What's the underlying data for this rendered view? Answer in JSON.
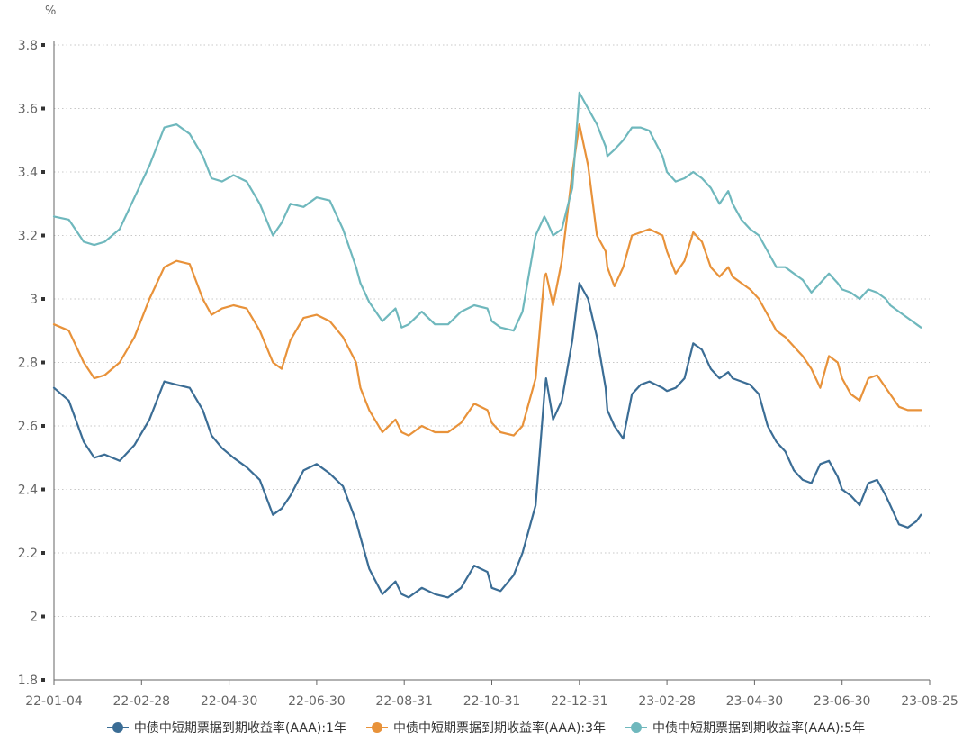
{
  "chart_data": {
    "type": "line",
    "title": "",
    "ylabel": "%",
    "xlabel": "",
    "ylim": [
      1.8,
      3.8
    ],
    "yticks": [
      "1.8",
      "2",
      "2.2",
      "2.4",
      "2.6",
      "2.8",
      "3",
      "3.2",
      "3.4",
      "3.6",
      "3.8"
    ],
    "xticks": [
      "22-01-04",
      "22-02-28",
      "22-04-30",
      "22-06-30",
      "22-08-31",
      "22-10-31",
      "22-12-31",
      "23-02-28",
      "23-04-30",
      "23-06-30",
      "23-08-25"
    ],
    "grid": true,
    "legend_position": "bottom",
    "series": [
      {
        "name": "中债中短期票据到期收益率(AAA):1年",
        "color": "#3b6d95",
        "x": [
          0,
          0.17,
          0.34,
          0.46,
          0.58,
          0.75,
          0.92,
          1.09,
          1.26,
          1.4,
          1.55,
          1.7,
          1.8,
          1.92,
          2.05,
          2.2,
          2.35,
          2.5,
          2.6,
          2.7,
          2.85,
          3,
          3.15,
          3.3,
          3.45,
          3.5,
          3.6,
          3.75,
          3.9,
          3.97,
          4.05,
          4.2,
          4.35,
          4.5,
          4.65,
          4.8,
          4.95,
          5.0,
          5.1,
          5.25,
          5.35,
          5.5,
          5.6,
          5.62,
          5.7,
          5.8,
          5.92,
          6.0,
          6.1,
          6.2,
          6.3,
          6.32,
          6.4,
          6.5,
          6.6,
          6.7,
          6.8,
          6.95,
          7.0,
          7.1,
          7.2,
          7.3,
          7.4,
          7.5,
          7.6,
          7.7,
          7.75,
          7.85,
          7.95,
          8.05,
          8.15,
          8.25,
          8.35,
          8.45,
          8.55,
          8.65,
          8.75,
          8.85,
          8.95,
          9.0,
          9.1,
          9.2,
          9.3,
          9.4,
          9.5,
          9.55,
          9.65,
          9.75,
          9.85,
          9.9
        ],
        "values": [
          2.72,
          2.68,
          2.55,
          2.5,
          2.51,
          2.49,
          2.54,
          2.62,
          2.74,
          2.73,
          2.72,
          2.65,
          2.57,
          2.53,
          2.5,
          2.47,
          2.43,
          2.32,
          2.34,
          2.38,
          2.46,
          2.48,
          2.45,
          2.41,
          2.3,
          2.25,
          2.15,
          2.07,
          2.11,
          2.07,
          2.06,
          2.09,
          2.07,
          2.06,
          2.09,
          2.16,
          2.14,
          2.09,
          2.08,
          2.13,
          2.2,
          2.35,
          2.7,
          2.75,
          2.62,
          2.68,
          2.87,
          3.05,
          3.0,
          2.88,
          2.72,
          2.65,
          2.6,
          2.56,
          2.7,
          2.73,
          2.74,
          2.72,
          2.71,
          2.72,
          2.75,
          2.86,
          2.84,
          2.78,
          2.75,
          2.77,
          2.75,
          2.74,
          2.73,
          2.7,
          2.6,
          2.55,
          2.52,
          2.46,
          2.43,
          2.42,
          2.48,
          2.49,
          2.44,
          2.4,
          2.38,
          2.35,
          2.42,
          2.43,
          2.38,
          2.35,
          2.29,
          2.28,
          2.3,
          2.32
        ]
      },
      {
        "name": "中债中短期票据到期收益率(AAA):3年",
        "color": "#e8923a",
        "x": [
          0,
          0.17,
          0.34,
          0.46,
          0.58,
          0.75,
          0.92,
          1.09,
          1.26,
          1.4,
          1.55,
          1.7,
          1.8,
          1.92,
          2.05,
          2.2,
          2.35,
          2.5,
          2.6,
          2.7,
          2.85,
          3,
          3.15,
          3.3,
          3.45,
          3.5,
          3.6,
          3.75,
          3.9,
          3.97,
          4.05,
          4.2,
          4.35,
          4.5,
          4.65,
          4.8,
          4.95,
          5.0,
          5.1,
          5.25,
          5.35,
          5.5,
          5.6,
          5.62,
          5.7,
          5.8,
          5.92,
          6.0,
          6.1,
          6.2,
          6.3,
          6.32,
          6.4,
          6.5,
          6.6,
          6.7,
          6.8,
          6.95,
          7.0,
          7.1,
          7.2,
          7.3,
          7.4,
          7.5,
          7.6,
          7.7,
          7.75,
          7.85,
          7.95,
          8.05,
          8.15,
          8.25,
          8.35,
          8.45,
          8.55,
          8.65,
          8.75,
          8.85,
          8.95,
          9.0,
          9.1,
          9.2,
          9.3,
          9.4,
          9.5,
          9.55,
          9.65,
          9.75,
          9.85,
          9.9
        ],
        "values": [
          2.92,
          2.9,
          2.8,
          2.75,
          2.76,
          2.8,
          2.88,
          3.0,
          3.1,
          3.12,
          3.11,
          3.0,
          2.95,
          2.97,
          2.98,
          2.97,
          2.9,
          2.8,
          2.78,
          2.87,
          2.94,
          2.95,
          2.93,
          2.88,
          2.8,
          2.72,
          2.65,
          2.58,
          2.62,
          2.58,
          2.57,
          2.6,
          2.58,
          2.58,
          2.61,
          2.67,
          2.65,
          2.61,
          2.58,
          2.57,
          2.6,
          2.75,
          3.07,
          3.08,
          2.98,
          3.12,
          3.4,
          3.55,
          3.42,
          3.2,
          3.15,
          3.1,
          3.04,
          3.1,
          3.2,
          3.21,
          3.22,
          3.2,
          3.15,
          3.08,
          3.12,
          3.21,
          3.18,
          3.1,
          3.07,
          3.1,
          3.07,
          3.05,
          3.03,
          3.0,
          2.95,
          2.9,
          2.88,
          2.85,
          2.82,
          2.78,
          2.72,
          2.82,
          2.8,
          2.75,
          2.7,
          2.68,
          2.75,
          2.76,
          2.72,
          2.7,
          2.66,
          2.65,
          2.65,
          2.65
        ]
      },
      {
        "name": "中债中短期票据到期收益率(AAA):5年",
        "color": "#6fb8bd",
        "x": [
          0,
          0.17,
          0.34,
          0.46,
          0.58,
          0.75,
          0.92,
          1.09,
          1.26,
          1.4,
          1.55,
          1.7,
          1.8,
          1.92,
          2.05,
          2.2,
          2.35,
          2.5,
          2.6,
          2.7,
          2.85,
          3,
          3.15,
          3.3,
          3.45,
          3.5,
          3.6,
          3.75,
          3.9,
          3.97,
          4.05,
          4.2,
          4.35,
          4.5,
          4.65,
          4.8,
          4.95,
          5.0,
          5.1,
          5.25,
          5.35,
          5.5,
          5.6,
          5.62,
          5.7,
          5.8,
          5.92,
          6.0,
          6.1,
          6.2,
          6.3,
          6.32,
          6.4,
          6.5,
          6.6,
          6.7,
          6.8,
          6.95,
          7.0,
          7.1,
          7.2,
          7.3,
          7.4,
          7.5,
          7.6,
          7.7,
          7.75,
          7.85,
          7.95,
          8.05,
          8.15,
          8.25,
          8.35,
          8.45,
          8.55,
          8.65,
          8.75,
          8.85,
          8.95,
          9.0,
          9.1,
          9.2,
          9.3,
          9.4,
          9.5,
          9.55,
          9.65,
          9.75,
          9.85,
          9.9
        ],
        "values": [
          3.26,
          3.25,
          3.18,
          3.17,
          3.18,
          3.22,
          3.32,
          3.42,
          3.54,
          3.55,
          3.52,
          3.45,
          3.38,
          3.37,
          3.39,
          3.37,
          3.3,
          3.2,
          3.24,
          3.3,
          3.29,
          3.32,
          3.31,
          3.22,
          3.1,
          3.05,
          2.99,
          2.93,
          2.97,
          2.91,
          2.92,
          2.96,
          2.92,
          2.92,
          2.96,
          2.98,
          2.97,
          2.93,
          2.91,
          2.9,
          2.96,
          3.2,
          3.26,
          3.25,
          3.2,
          3.22,
          3.35,
          3.65,
          3.6,
          3.55,
          3.48,
          3.45,
          3.47,
          3.5,
          3.54,
          3.54,
          3.53,
          3.45,
          3.4,
          3.37,
          3.38,
          3.4,
          3.38,
          3.35,
          3.3,
          3.34,
          3.3,
          3.25,
          3.22,
          3.2,
          3.15,
          3.1,
          3.1,
          3.08,
          3.06,
          3.02,
          3.05,
          3.08,
          3.05,
          3.03,
          3.02,
          3.0,
          3.03,
          3.02,
          3.0,
          2.98,
          2.96,
          2.94,
          2.92,
          2.91
        ]
      }
    ]
  }
}
